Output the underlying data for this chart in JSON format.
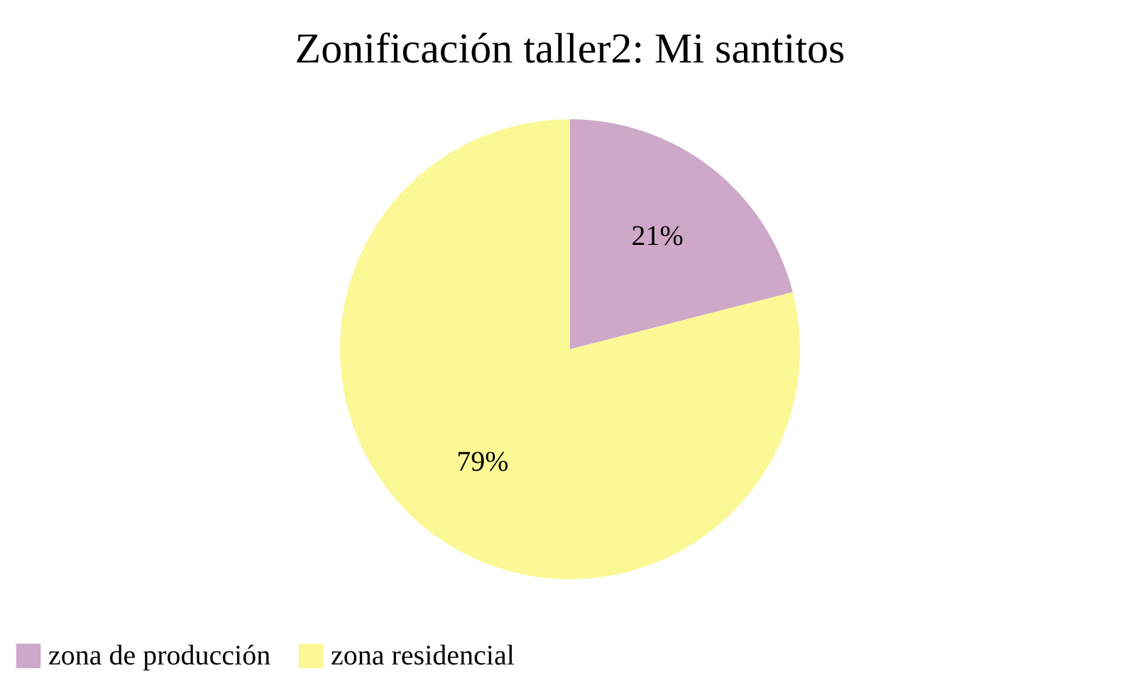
{
  "chart_data": {
    "type": "pie",
    "title": "Zonificación taller2: Mi santitos",
    "categories": [
      "zona de producción",
      "zona residencial"
    ],
    "values": [
      21,
      79
    ],
    "colors": [
      "#cda8c8",
      "#fbf895"
    ],
    "value_labels": [
      "21%",
      "79%"
    ],
    "legend": "bottom"
  }
}
